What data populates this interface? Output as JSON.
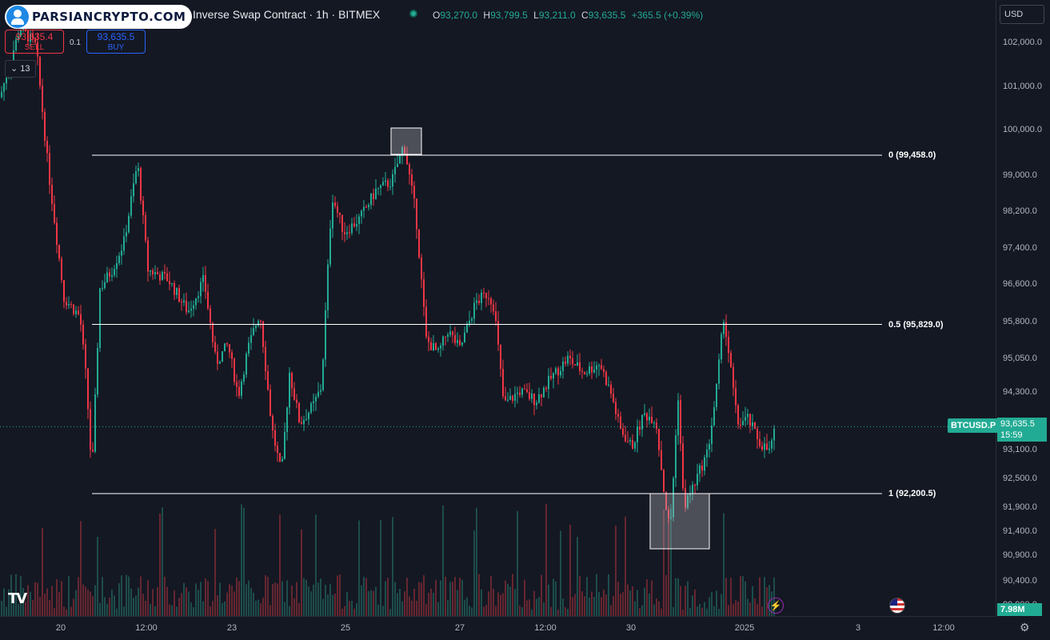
{
  "header": {
    "logo_text": "PARSIANCRYPTO.COM",
    "symbol_title": "Inverse Swap Contract · 1h · BITMEX",
    "ohlc": [
      {
        "key": "O",
        "value": "93,270.0"
      },
      {
        "key": "H",
        "value": "93,799.5"
      },
      {
        "key": "L",
        "value": "93,211.0"
      },
      {
        "key": "C",
        "value": "93,635.5"
      }
    ],
    "change": "+365.5 (+0.39%)"
  },
  "trade": {
    "sell_price": "93,635.4",
    "sell_label": "SELL",
    "buy_price": "93,635.5",
    "buy_label": "BUY",
    "spread": "0.1"
  },
  "indicators_toggle": "13",
  "currency": "USD",
  "symbol_tag": "BTCUSD.P",
  "last_price": "93,635.5",
  "countdown": "15:59",
  "volume_tag": "7.98M",
  "icons": [
    "tradingview-logo-icon",
    "flash-icon",
    "us-flag-icon",
    "gear-icon",
    "chevron-down-icon"
  ],
  "colors": {
    "up": "#22ab94",
    "down": "#f23645",
    "fib_line": "#ffffff",
    "background": "#141823"
  },
  "chart_data": {
    "type": "candlestick",
    "timeframe": "1h",
    "y_ticks": [
      "102,000.0",
      "101,000.0",
      "100,000.0",
      "99,000.0",
      "98,200.0",
      "97,400.0",
      "96,600.0",
      "95,800.0",
      "95,050.0",
      "94,300.0",
      "93,100.0",
      "92,500.0",
      "91,900.0",
      "91,400.0",
      "90,900.0",
      "90,400.0",
      "89,900.0"
    ],
    "x_ticks": [
      "20",
      "12:00",
      "23",
      "25",
      "27",
      "12:00",
      "30",
      "2025",
      "3",
      "12:00"
    ],
    "ylim": [
      89700,
      102400
    ],
    "fib_levels": [
      {
        "label": "0 (99,458.0)",
        "value": 99458.0
      },
      {
        "label": "0.5 (95,829.0)",
        "value": 95829.0
      },
      {
        "label": "1 (92,200.5)",
        "value": 92200.5
      }
    ],
    "price_path": [
      [
        0,
        100700
      ],
      [
        25,
        102200
      ],
      [
        45,
        101800
      ],
      [
        60,
        99200
      ],
      [
        80,
        96400
      ],
      [
        100,
        96000
      ],
      [
        108,
        94600
      ],
      [
        115,
        92600
      ],
      [
        125,
        96600
      ],
      [
        140,
        97000
      ],
      [
        155,
        97600
      ],
      [
        172,
        99300
      ],
      [
        185,
        97000
      ],
      [
        210,
        96800
      ],
      [
        235,
        96100
      ],
      [
        255,
        96800
      ],
      [
        270,
        95000
      ],
      [
        285,
        95400
      ],
      [
        298,
        94300
      ],
      [
        310,
        95300
      ],
      [
        325,
        96100
      ],
      [
        340,
        93600
      ],
      [
        352,
        92600
      ],
      [
        362,
        94800
      ],
      [
        375,
        93700
      ],
      [
        392,
        94100
      ],
      [
        402,
        94500
      ],
      [
        415,
        98600
      ],
      [
        430,
        97800
      ],
      [
        450,
        98100
      ],
      [
        470,
        98700
      ],
      [
        490,
        98900
      ],
      [
        505,
        99700
      ],
      [
        520,
        98200
      ],
      [
        533,
        95500
      ],
      [
        548,
        95200
      ],
      [
        560,
        95700
      ],
      [
        575,
        95300
      ],
      [
        595,
        96300
      ],
      [
        610,
        96500
      ],
      [
        618,
        96200
      ],
      [
        630,
        94100
      ],
      [
        650,
        94400
      ],
      [
        670,
        94200
      ],
      [
        690,
        94700
      ],
      [
        710,
        95100
      ],
      [
        730,
        94800
      ],
      [
        750,
        95000
      ],
      [
        765,
        94300
      ],
      [
        775,
        93600
      ],
      [
        790,
        93200
      ],
      [
        805,
        93900
      ],
      [
        820,
        93800
      ],
      [
        832,
        92000
      ],
      [
        838,
        91400
      ],
      [
        848,
        94300
      ],
      [
        855,
        91900
      ],
      [
        868,
        92400
      ],
      [
        885,
        93100
      ],
      [
        895,
        94300
      ],
      [
        905,
        96000
      ],
      [
        912,
        95100
      ],
      [
        922,
        93700
      ],
      [
        935,
        93800
      ],
      [
        950,
        93300
      ],
      [
        962,
        93100
      ],
      [
        970,
        93635.5
      ]
    ],
    "volume_max_label": "7.98M"
  }
}
